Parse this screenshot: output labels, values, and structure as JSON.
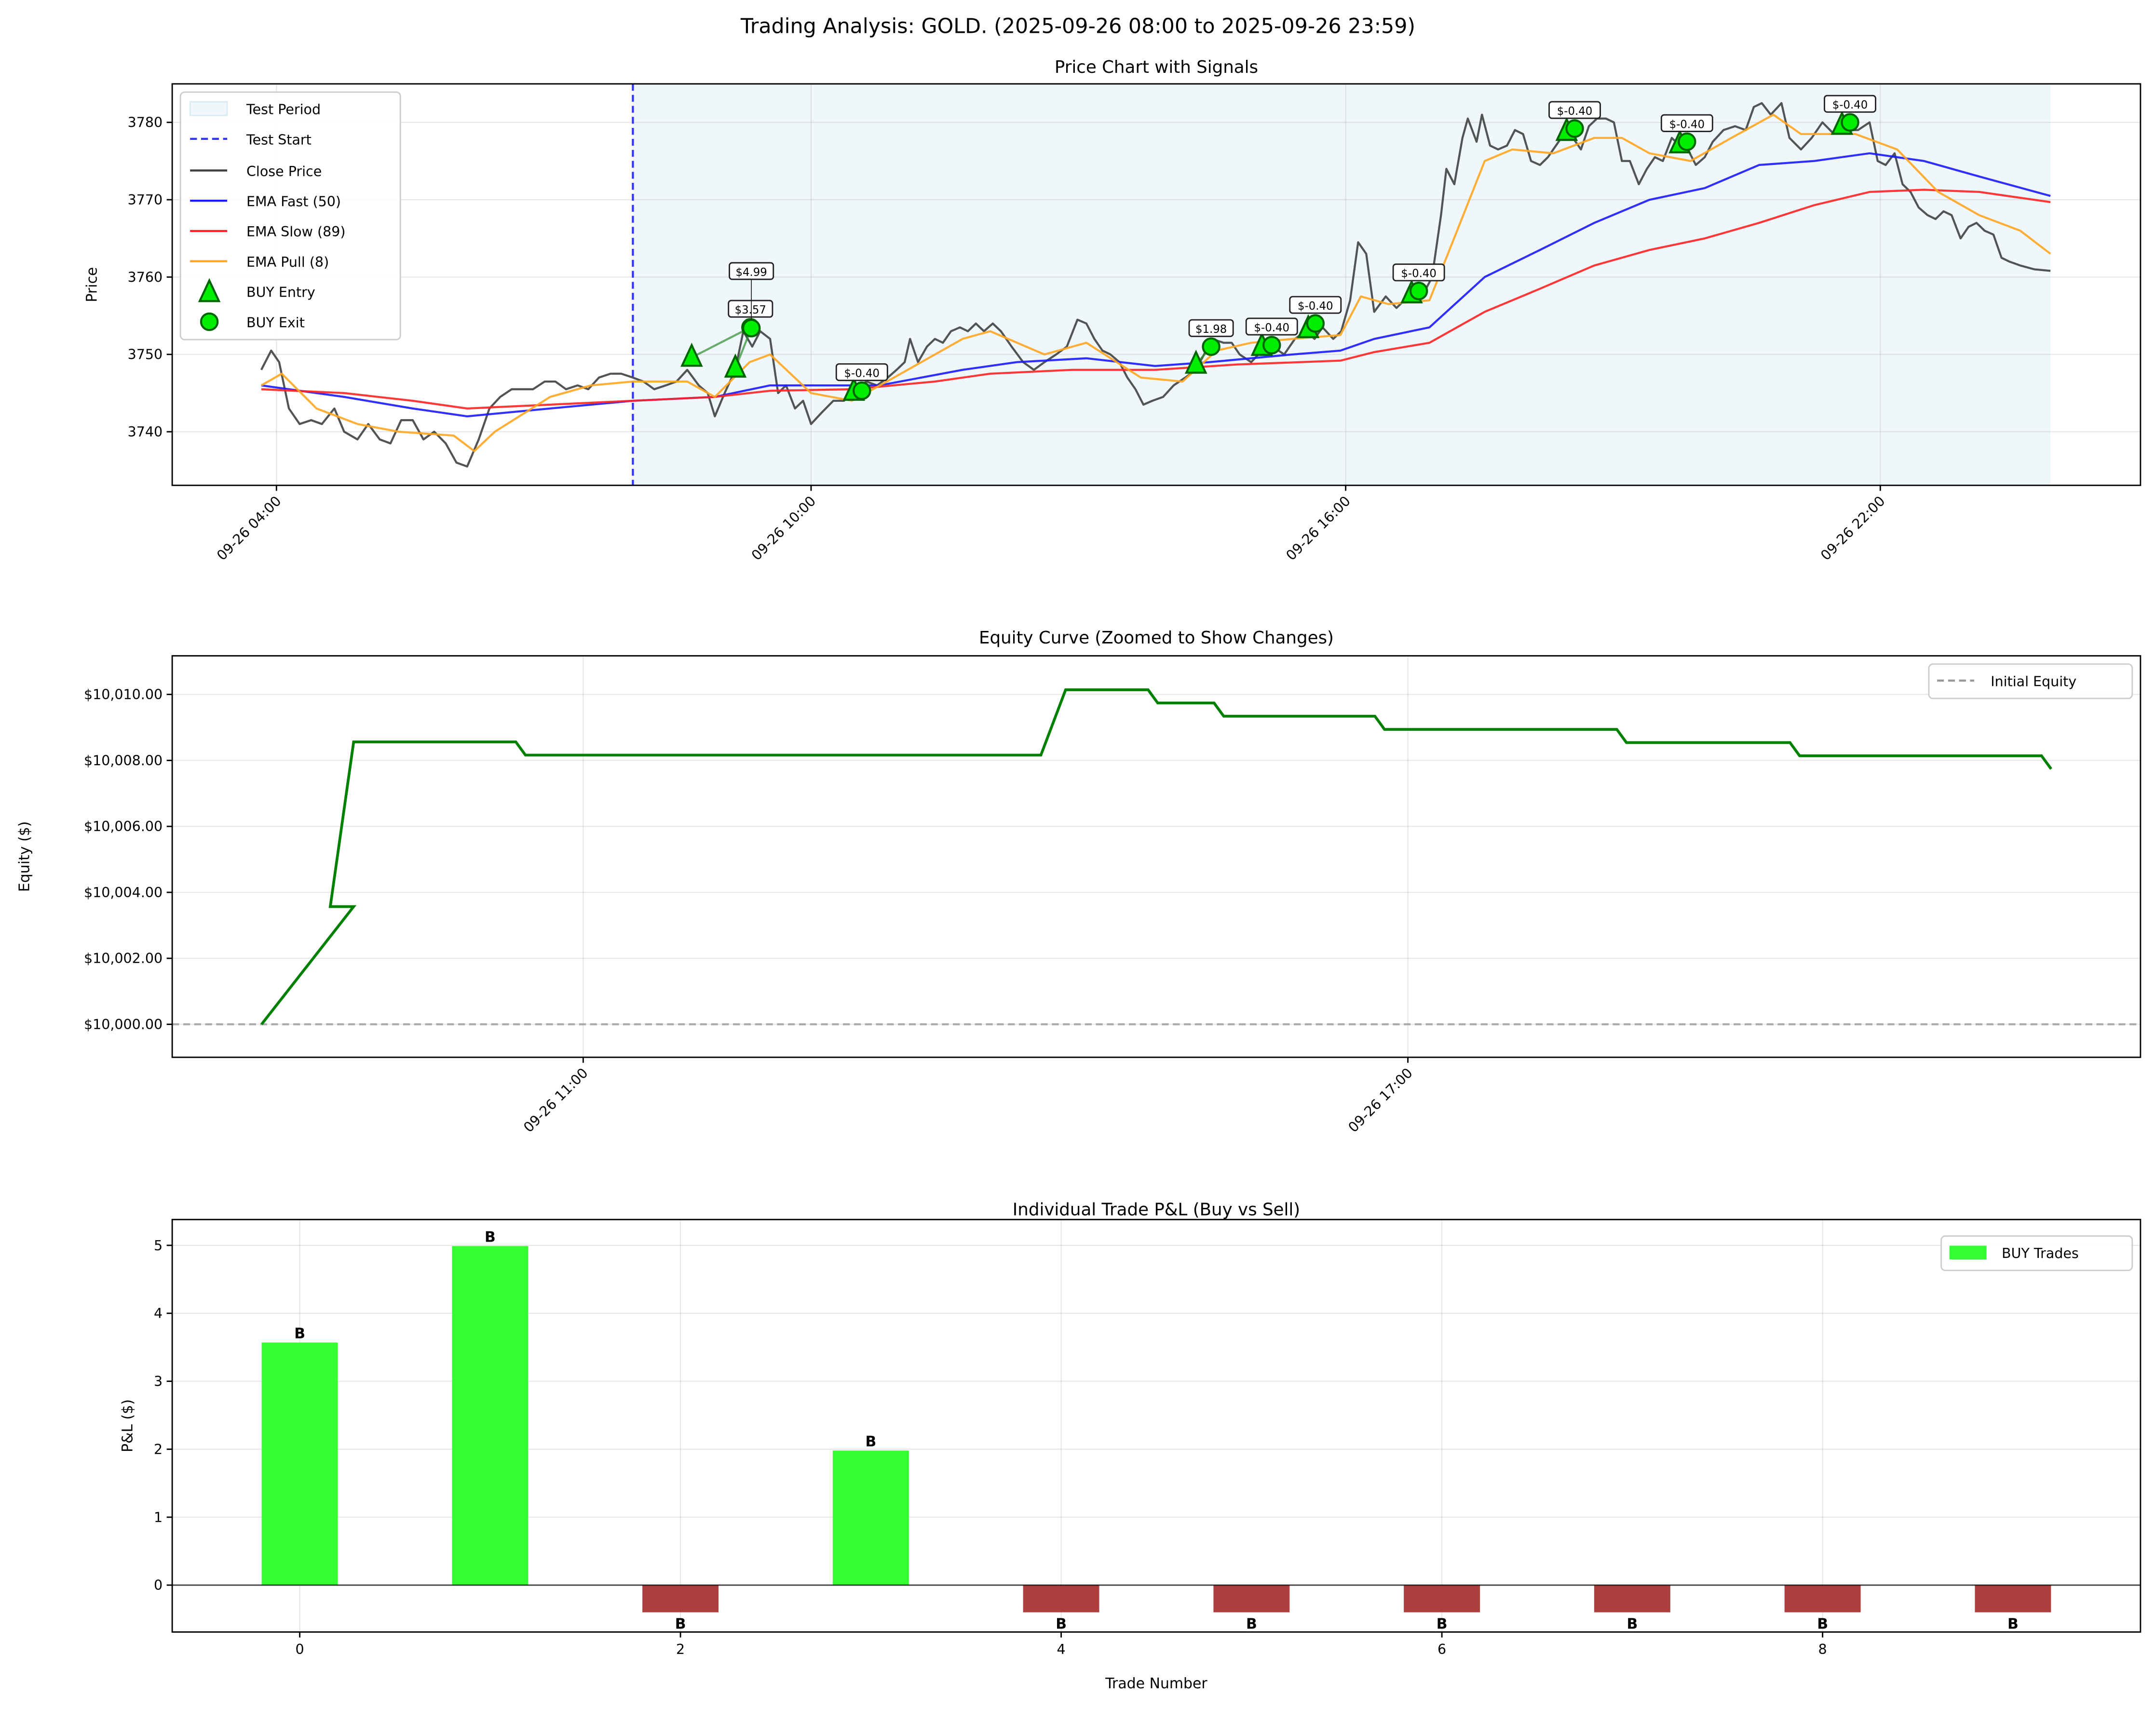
{
  "figure_title": "Trading Analysis: GOLD. (2025-09-26 08:00 to 2025-09-26 23:59)",
  "chart_data": [
    {
      "type": "line",
      "title": "Price Chart with Signals",
      "xlabel": "",
      "ylabel": "Price",
      "xlim": [
        2.83,
        24.92
      ],
      "ylim": [
        3733.07,
        3784.98
      ],
      "x_unit": "hours on 2025-09-26",
      "grid": true,
      "legend_position": "top-left",
      "yticks": [
        {
          "v": 3740,
          "label": "3740"
        },
        {
          "v": 3750,
          "label": "3750"
        },
        {
          "v": 3760,
          "label": "3760"
        },
        {
          "v": 3770,
          "label": "3770"
        },
        {
          "v": 3780,
          "label": "3780"
        }
      ],
      "xticks": [
        {
          "v": 4,
          "label": "09-26 04:00"
        },
        {
          "v": 10,
          "label": "09-26 10:00"
        },
        {
          "v": 16,
          "label": "09-26 16:00"
        },
        {
          "v": 22,
          "label": "09-26 22:00"
        }
      ],
      "test_period": {
        "start": 8.0,
        "end": 23.91,
        "label": "Test Period",
        "color": "#add8e6"
      },
      "test_start": {
        "t": 8.0,
        "label": "Test Start",
        "color": "#3333ff"
      },
      "series": [
        {
          "name": "Close Price",
          "color": "#404040",
          "t": [
            3.83,
            3.94,
            4.03,
            4.14,
            4.26,
            4.39,
            4.51,
            4.65,
            4.76,
            4.91,
            5.03,
            5.16,
            5.28,
            5.4,
            5.53,
            5.65,
            5.77,
            5.9,
            6.02,
            6.14,
            6.27,
            6.39,
            6.51,
            6.64,
            6.76,
            6.88,
            7.01,
            7.13,
            7.25,
            7.38,
            7.5,
            7.62,
            7.75,
            7.87,
            8.0,
            8.12,
            8.24,
            8.37,
            8.49,
            8.61,
            8.74,
            8.84,
            8.92,
            9.03,
            9.15,
            9.24,
            9.34,
            9.43,
            9.54,
            9.63,
            9.72,
            9.82,
            9.91,
            10.0,
            10.12,
            10.25,
            10.37,
            10.49,
            10.62,
            10.74,
            10.86,
            10.96,
            11.05,
            11.11,
            11.2,
            11.3,
            11.39,
            11.48,
            11.57,
            11.67,
            11.76,
            11.85,
            11.94,
            12.04,
            12.13,
            12.25,
            12.38,
            12.5,
            12.62,
            12.75,
            12.87,
            12.99,
            13.09,
            13.18,
            13.27,
            13.36,
            13.46,
            13.55,
            13.64,
            13.73,
            13.83,
            13.95,
            14.07,
            14.2,
            14.32,
            14.41,
            14.5,
            14.63,
            14.72,
            14.81,
            14.94,
            15.06,
            15.18,
            15.31,
            15.43,
            15.55,
            15.65,
            15.74,
            15.86,
            15.95,
            16.05,
            16.14,
            16.23,
            16.32,
            16.45,
            16.57,
            16.66,
            16.79,
            16.88,
            16.97,
            17.07,
            17.13,
            17.22,
            17.31,
            17.37,
            17.47,
            17.53,
            17.62,
            17.71,
            17.81,
            17.9,
            17.99,
            18.08,
            18.18,
            18.27,
            18.36,
            18.45,
            18.55,
            18.64,
            18.73,
            18.82,
            18.92,
            19.01,
            19.1,
            19.19,
            19.29,
            19.38,
            19.47,
            19.56,
            19.66,
            19.75,
            19.84,
            19.93,
            20.03,
            20.12,
            20.24,
            20.37,
            20.49,
            20.58,
            20.67,
            20.77,
            20.89,
            20.98,
            21.11,
            21.23,
            21.35,
            21.48,
            21.57,
            21.66,
            21.75,
            21.88,
            21.97,
            22.06,
            22.16,
            22.25,
            22.34,
            22.43,
            22.53,
            22.62,
            22.71,
            22.8,
            22.9,
            22.99,
            23.08,
            23.17,
            23.27,
            23.36,
            23.45,
            23.57,
            23.73,
            23.91
          ],
          "v": [
            3748,
            3750.5,
            3749,
            3743,
            3741,
            3741.5,
            3741,
            3743,
            3740,
            3739,
            3741,
            3739,
            3738.5,
            3741.5,
            3741.5,
            3739,
            3740,
            3738.5,
            3736,
            3735.5,
            3739,
            3743,
            3744.5,
            3745.5,
            3745.5,
            3745.5,
            3746.5,
            3746.5,
            3745.5,
            3746,
            3745.5,
            3747,
            3747.5,
            3747.5,
            3747,
            3746.5,
            3745.5,
            3746,
            3746.5,
            3748,
            3746,
            3745,
            3742,
            3745,
            3748,
            3753,
            3751,
            3753,
            3752,
            3745,
            3746,
            3743,
            3744,
            3741,
            3742.5,
            3744,
            3744,
            3745.5,
            3746.5,
            3746,
            3747,
            3748,
            3749,
            3752,
            3749,
            3751,
            3752,
            3751.5,
            3753,
            3753.5,
            3753,
            3754,
            3753,
            3754,
            3753,
            3751,
            3749,
            3748,
            3749,
            3750,
            3751,
            3754.5,
            3754,
            3752,
            3750.5,
            3750,
            3749,
            3747,
            3745.5,
            3743.5,
            3744,
            3744.5,
            3746,
            3747,
            3748,
            3750,
            3752,
            3751.5,
            3751.5,
            3750,
            3749,
            3750.5,
            3751,
            3750,
            3752,
            3753,
            3752,
            3753.5,
            3752,
            3753,
            3757,
            3764.5,
            3763,
            3755.5,
            3757.5,
            3756,
            3757,
            3757.5,
            3758,
            3760,
            3768,
            3774,
            3772,
            3778,
            3780.5,
            3777.5,
            3781,
            3777,
            3776.5,
            3777,
            3779,
            3778.5,
            3775,
            3774.5,
            3775.5,
            3777,
            3778.5,
            3778,
            3776.5,
            3779.5,
            3780.5,
            3780.5,
            3780,
            3775,
            3775,
            3772,
            3774,
            3775.5,
            3775,
            3778,
            3777,
            3776.5,
            3774.5,
            3775.5,
            3777.5,
            3779,
            3779.5,
            3779,
            3782,
            3782.5,
            3781,
            3782.5,
            3778,
            3776.5,
            3778,
            3780,
            3778.5,
            3779.5,
            3779,
            3779,
            3780,
            3775,
            3774.5,
            3776,
            3772,
            3771,
            3769,
            3768,
            3767.5,
            3768.5,
            3768,
            3765,
            3766.5,
            3767,
            3766,
            3765.5,
            3762.5,
            3762,
            3761.5,
            3761,
            3760.8
          ]
        },
        {
          "name": "EMA Fast (50)",
          "color": "#1a1aff",
          "t": [
            3.83,
            4.76,
            5.53,
            6.14,
            7.07,
            8.0,
            8.92,
            9.54,
            10.0,
            10.77,
            11.7,
            12.31,
            13.09,
            13.86,
            14.47,
            15.4,
            15.94,
            16.32,
            16.94,
            17.56,
            18.18,
            18.79,
            19.41,
            20.03,
            20.64,
            21.26,
            21.88,
            22.49,
            23.11,
            23.91
          ],
          "v": [
            3746,
            3744.5,
            3743,
            3742,
            3743,
            3744,
            3744.5,
            3746,
            3746,
            3746,
            3748,
            3749,
            3749.5,
            3748.5,
            3749,
            3750,
            3750.5,
            3752,
            3753.5,
            3760,
            3763.5,
            3767,
            3770,
            3771.5,
            3774.5,
            3775,
            3776,
            3775,
            3773,
            3770.5
          ]
        },
        {
          "name": "EMA Slow (89)",
          "color": "#ff2222",
          "t": [
            3.83,
            4.76,
            5.53,
            6.14,
            7.07,
            8.0,
            8.92,
            9.54,
            10.46,
            11.39,
            12.01,
            12.93,
            13.86,
            14.78,
            15.94,
            16.32,
            16.94,
            17.56,
            18.18,
            18.79,
            19.41,
            20.03,
            20.64,
            21.26,
            21.88,
            22.49,
            23.11,
            23.91
          ],
          "v": [
            3745.5,
            3745,
            3744,
            3743,
            3743.5,
            3744,
            3744.5,
            3745.3,
            3745.5,
            3746.5,
            3747.5,
            3748,
            3748,
            3748.7,
            3749.2,
            3750.3,
            3751.5,
            3755.5,
            3758.5,
            3761.5,
            3763.5,
            3765,
            3767,
            3769.3,
            3771,
            3771.3,
            3771,
            3769.7
          ]
        },
        {
          "name": "EMA Pull (8)",
          "color": "#ffa520",
          "t": [
            3.83,
            4.06,
            4.45,
            4.91,
            5.37,
            5.99,
            6.22,
            6.45,
            7.07,
            7.53,
            8.0,
            8.61,
            8.92,
            9.31,
            9.54,
            10.0,
            10.46,
            10.93,
            11.7,
            12.01,
            12.62,
            13.09,
            13.7,
            14.17,
            14.55,
            14.94,
            15.4,
            15.94,
            16.17,
            16.48,
            16.94,
            17.25,
            17.56,
            17.87,
            18.33,
            18.79,
            19.1,
            19.41,
            19.87,
            20.33,
            20.8,
            21.11,
            21.72,
            22.19,
            22.65,
            23.11,
            23.57,
            23.91
          ],
          "v": [
            3746,
            3747.5,
            3743,
            3741,
            3740,
            3739.5,
            3737.5,
            3740,
            3744.5,
            3746,
            3746.5,
            3746.5,
            3744.5,
            3749,
            3750,
            3745,
            3744,
            3747,
            3752,
            3753,
            3750,
            3751.5,
            3747,
            3746.5,
            3750.5,
            3751.5,
            3752,
            3752.5,
            3757.5,
            3756.5,
            3757,
            3766,
            3775,
            3776.5,
            3776,
            3778,
            3778,
            3776,
            3775,
            3778,
            3781,
            3778.5,
            3778.5,
            3776.5,
            3771,
            3768,
            3766,
            3763
          ]
        }
      ],
      "entry_label": "BUY Entry",
      "exit_label": "BUY Exit",
      "trades": [
        {
          "entry_t": 8.66,
          "entry_p": 3749.6,
          "exit_t": 9.32,
          "exit_p": 3753.5,
          "label": "$3.57"
        },
        {
          "entry_t": 9.15,
          "entry_p": 3748.2,
          "exit_t": 9.33,
          "exit_p": 3753.4,
          "label": "$4.99"
        },
        {
          "entry_t": 10.48,
          "entry_p": 3745.2,
          "exit_t": 10.57,
          "exit_p": 3745.3,
          "label": "$-0.40"
        },
        {
          "entry_t": 14.32,
          "entry_p": 3748.7,
          "exit_t": 14.49,
          "exit_p": 3751.0,
          "label": "$1.98"
        },
        {
          "entry_t": 15.06,
          "entry_p": 3751.0,
          "exit_t": 15.17,
          "exit_p": 3751.2,
          "label": "$-0.40"
        },
        {
          "entry_t": 15.58,
          "entry_p": 3753.3,
          "exit_t": 15.66,
          "exit_p": 3754.0,
          "label": "$-0.40"
        },
        {
          "entry_t": 16.74,
          "entry_p": 3757.8,
          "exit_t": 16.82,
          "exit_p": 3758.2,
          "label": "$-0.40"
        },
        {
          "entry_t": 18.48,
          "entry_p": 3778.8,
          "exit_t": 18.57,
          "exit_p": 3779.2,
          "label": "$-0.40"
        },
        {
          "entry_t": 19.75,
          "entry_p": 3777.2,
          "exit_t": 19.83,
          "exit_p": 3777.5,
          "label": "$-0.40"
        },
        {
          "entry_t": 21.57,
          "entry_p": 3779.6,
          "exit_t": 21.66,
          "exit_p": 3780.0,
          "label": "$-0.40"
        }
      ]
    },
    {
      "type": "line",
      "title": "Equity Curve (Zoomed to Show Changes)",
      "xlabel": "",
      "ylabel": "Equity ($)",
      "xlim": [
        8.01,
        22.33
      ],
      "ylim": [
        9999.0,
        10011.17
      ],
      "grid": true,
      "legend_position": "top-right",
      "yticks": [
        {
          "v": 10000,
          "label": "$10,000.00"
        },
        {
          "v": 10002,
          "label": "$10,002.00"
        },
        {
          "v": 10004,
          "label": "$10,004.00"
        },
        {
          "v": 10006,
          "label": "$10,006.00"
        },
        {
          "v": 10008,
          "label": "$10,008.00"
        },
        {
          "v": 10010,
          "label": "$10,010.00"
        }
      ],
      "xticks": [
        {
          "v": 11,
          "label": "09-26 11:00"
        },
        {
          "v": 17,
          "label": "09-26 17:00"
        }
      ],
      "initial_equity": {
        "v": 10000,
        "label": "Initial Equity",
        "color": "#999999"
      },
      "series": [
        {
          "name": "Equity",
          "color": "#008000",
          "t": [
            8.66,
            9.33,
            9.16,
            9.33,
            10.51,
            10.58,
            14.33,
            14.51,
            15.11,
            15.18,
            15.59,
            15.66,
            16.76,
            16.83,
            18.52,
            18.59,
            19.78,
            19.85,
            21.61,
            21.68
          ],
          "v": [
            10000,
            10003.57,
            10003.57,
            10008.56,
            10008.56,
            10008.16,
            10008.16,
            10010.14,
            10010.14,
            10009.74,
            10009.74,
            10009.34,
            10009.34,
            10008.94,
            10008.94,
            10008.54,
            10008.54,
            10008.14,
            10008.14,
            10007.74
          ]
        }
      ]
    },
    {
      "type": "bar",
      "title": "Individual Trade P&L (Buy vs Sell)",
      "xlabel": "Trade Number",
      "ylabel": "P&L ($)",
      "xlim": [
        -0.67,
        9.67
      ],
      "ylim": [
        -0.69,
        5.38
      ],
      "grid": true,
      "legend_position": "top-right",
      "legend": "BUY Trades",
      "bar_width": 0.4,
      "positive_color": "#33ff33",
      "negative_color": "#a52a2a",
      "yticks": [
        {
          "v": 0,
          "label": "0"
        },
        {
          "v": 1,
          "label": "1"
        },
        {
          "v": 2,
          "label": "2"
        },
        {
          "v": 3,
          "label": "3"
        },
        {
          "v": 4,
          "label": "4"
        },
        {
          "v": 5,
          "label": "5"
        }
      ],
      "xticks": [
        {
          "v": 0,
          "label": "0"
        },
        {
          "v": 2,
          "label": "2"
        },
        {
          "v": 4,
          "label": "4"
        },
        {
          "v": 6,
          "label": "6"
        },
        {
          "v": 8,
          "label": "8"
        }
      ],
      "categories": [
        0,
        1,
        2,
        3,
        4,
        5,
        6,
        7,
        8,
        9
      ],
      "values": [
        3.57,
        4.99,
        -0.4,
        1.98,
        -0.4,
        -0.4,
        -0.4,
        -0.4,
        -0.4,
        -0.4
      ],
      "bar_labels": [
        "B",
        "B",
        "B",
        "B",
        "B",
        "B",
        "B",
        "B",
        "B",
        "B"
      ]
    }
  ]
}
